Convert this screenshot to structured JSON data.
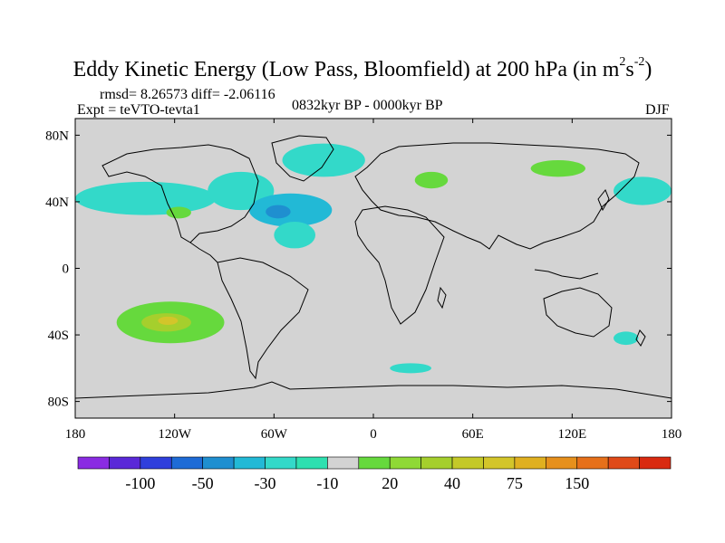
{
  "title": {
    "main": "Eddy Kinetic Energy (Low Pass, Bloomfield) at 200 hPa (in m",
    "unit_exp1": "2",
    "unit_s": "s",
    "unit_exp2": "-2",
    "close": ")"
  },
  "stats": {
    "rmsd": "rmsd= 8.26573 diff= -2.06116"
  },
  "experiment": "Expt = teVTO-tevta1",
  "period": "0832kyr BP - 0000kyr BP",
  "season": "DJF",
  "colors": {
    "land_zero": "#d3d3d3",
    "neg_light": "#33d9c9",
    "neg_mid": "#22b9d6",
    "neg_dark": "#1f8fd0",
    "pos_light": "#66d93d",
    "pos_mid": "#a5cf2d",
    "pos_warm": "#d3c52a"
  },
  "chart_data": {
    "type": "heatmap",
    "projection": "cylindrical equidistant",
    "xlim": [
      -180,
      180
    ],
    "ylim": [
      -90,
      90
    ],
    "x_ticks": [
      {
        "value": -180,
        "label": "180"
      },
      {
        "value": -120,
        "label": "120W"
      },
      {
        "value": -60,
        "label": "60W"
      },
      {
        "value": 0,
        "label": "0"
      },
      {
        "value": 60,
        "label": "60E"
      },
      {
        "value": 120,
        "label": "120E"
      },
      {
        "value": 180,
        "label": "180"
      }
    ],
    "y_ticks": [
      {
        "value": 80,
        "label": "80N"
      },
      {
        "value": 40,
        "label": "40N"
      },
      {
        "value": 0,
        "label": "0"
      },
      {
        "value": -40,
        "label": "40S"
      },
      {
        "value": -80,
        "label": "80S"
      }
    ],
    "colorbar": {
      "colors": [
        "#8a2be2",
        "#5a28d8",
        "#2f3fdc",
        "#1e6bd6",
        "#1f8fd0",
        "#22b9d6",
        "#33d9c9",
        "#2ee0b0",
        "#d3d3d3",
        "#66d93d",
        "#8fd936",
        "#a5cf2d",
        "#c4c928",
        "#d3c52a",
        "#e0b020",
        "#e6901c",
        "#e6701a",
        "#e04a18",
        "#d92a10"
      ],
      "labels": [
        {
          "after_index": 1,
          "label": "-100"
        },
        {
          "after_index": 3,
          "label": "-50"
        },
        {
          "after_index": 5,
          "label": "-30"
        },
        {
          "after_index": 7,
          "label": "-10"
        },
        {
          "after_index": 9,
          "label": "20"
        },
        {
          "after_index": 11,
          "label": "40"
        },
        {
          "after_index": 13,
          "label": "75"
        },
        {
          "after_index": 15,
          "label": "150"
        }
      ]
    },
    "anomaly_regions": [
      {
        "name": "north-pacific-negative",
        "level": "neg_light",
        "lon": [
          -180,
          -95
        ],
        "lat": [
          32,
          52
        ]
      },
      {
        "name": "north-america-negative",
        "level": "neg_light",
        "lon": [
          -100,
          -60
        ],
        "lat": [
          35,
          58
        ]
      },
      {
        "name": "west-atlantic-negative-core",
        "level": "neg_mid",
        "lon": [
          -75,
          -25
        ],
        "lat": [
          25,
          45
        ]
      },
      {
        "name": "west-atlantic-negative-center",
        "level": "neg_dark",
        "lon": [
          -65,
          -50
        ],
        "lat": [
          30,
          38
        ]
      },
      {
        "name": "subtropical-atlantic-negative",
        "level": "neg_light",
        "lon": [
          -60,
          -35
        ],
        "lat": [
          12,
          28
        ]
      },
      {
        "name": "greenland-negative",
        "level": "neg_light",
        "lon": [
          -55,
          -5
        ],
        "lat": [
          55,
          75
        ]
      },
      {
        "name": "nw-pacific-negative",
        "level": "neg_light",
        "lon": [
          145,
          180
        ],
        "lat": [
          38,
          55
        ]
      },
      {
        "name": "central-asia-positive",
        "level": "pos_light",
        "lon": [
          95,
          128
        ],
        "lat": [
          55,
          65
        ]
      },
      {
        "name": "eastern-europe-positive",
        "level": "pos_light",
        "lon": [
          25,
          45
        ],
        "lat": [
          48,
          58
        ]
      },
      {
        "name": "mexico-positive",
        "level": "pos_light",
        "lon": [
          -125,
          -110
        ],
        "lat": [
          30,
          37
        ]
      },
      {
        "name": "south-pacific-positive",
        "level": "pos_light",
        "lon": [
          -155,
          -90
        ],
        "lat": [
          -45,
          -20
        ]
      },
      {
        "name": "south-pacific-positive-core",
        "level": "pos_mid",
        "lon": [
          -140,
          -110
        ],
        "lat": [
          -38,
          -27
        ]
      },
      {
        "name": "south-pacific-positive-center",
        "level": "pos_warm",
        "lon": [
          -130,
          -118
        ],
        "lat": [
          -34,
          -29
        ]
      },
      {
        "name": "south-atlantic-negative",
        "level": "neg_light",
        "lon": [
          10,
          35
        ],
        "lat": [
          -63,
          -57
        ]
      },
      {
        "name": "tasman-negative",
        "level": "neg_light",
        "lon": [
          145,
          160
        ],
        "lat": [
          -46,
          -38
        ]
      }
    ]
  }
}
